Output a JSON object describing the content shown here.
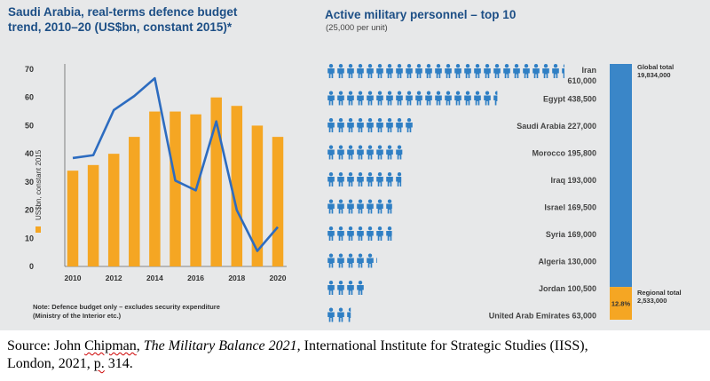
{
  "left_panel": {
    "title_line1": "Saudi Arabia, real-terms defence budget",
    "title_line2": "trend, 2010–20 (US$bn, constant 2015)*",
    "note_line1": "Note: Defence budget only – excludes security expenditure",
    "note_line2": "(Ministry of the Interior etc.)"
  },
  "right_panel": {
    "title": "Active military personnel – top 10",
    "subtitle": "(25,000 per unit)"
  },
  "chart_data": [
    {
      "type": "bar",
      "title": "Saudi Arabia, real-terms defence budget trend, 2010–20 (US$bn, constant 2015)*",
      "ylabel": "US$bn, constant 2015",
      "ylim": [
        0,
        70
      ],
      "yticks": [
        "0",
        "10",
        "20",
        "30",
        "40",
        "50",
        "60",
        "70"
      ],
      "x": [
        2010,
        2011,
        2012,
        2013,
        2014,
        2015,
        2016,
        2017,
        2018,
        2019,
        2020
      ],
      "xtick_labels": [
        "2010",
        "2012",
        "2014",
        "2016",
        "2018",
        "2020"
      ],
      "bar_values": [
        34,
        36,
        40,
        46,
        55,
        55,
        54,
        60,
        57,
        50,
        46
      ],
      "line_values": [
        38.5,
        39.5,
        55.5,
        60.5,
        66.8,
        30.5,
        27,
        51.5,
        20,
        5.5,
        14
      ],
      "bar_color": "#f5a623",
      "line_color": "#2d6cc0"
    },
    {
      "type": "bar",
      "title": "Active military personnel – top 10",
      "unit_note": "(25,000 per unit)",
      "units_per_icon": 25000,
      "rows": [
        {
          "country": "Iran",
          "value_label": "610,000",
          "value": 610000
        },
        {
          "country": "Egypt",
          "value_label": "438,500",
          "value": 438500
        },
        {
          "country": "Saudi Arabia",
          "value_label": "227,000",
          "value": 227000
        },
        {
          "country": "Morocco",
          "value_label": "195,800",
          "value": 195800
        },
        {
          "country": "Iraq",
          "value_label": "193,000",
          "value": 193000
        },
        {
          "country": "Israel",
          "value_label": "169,500",
          "value": 169500
        },
        {
          "country": "Syria",
          "value_label": "169,000",
          "value": 169000
        },
        {
          "country": "Algeria",
          "value_label": "130,000",
          "value": 130000
        },
        {
          "country": "Jordan",
          "value_label": "100,500",
          "value": 100500
        },
        {
          "country": "United Arab Emirates",
          "value_label": "63,000",
          "value": 63000
        }
      ],
      "stack": {
        "global_label": "Global total",
        "global_value": "19,834,000",
        "regional_label": "Regional total",
        "regional_value": "2,533,000",
        "regional_share_label": "12.8%",
        "regional_share": 12.8,
        "global_color": "#3a86c8",
        "regional_color": "#f5a623"
      },
      "icon_color": "#2f7fc4"
    }
  ],
  "source": {
    "prefix": "Source: John ",
    "author": "Chipman",
    "sep1": ", ",
    "book": "The Military Balance 2021",
    "rest1": ", International Institute for Strategic Studies (IISS),",
    "rest2a": "London, 2021, ",
    "pp": "p.",
    "rest2b": " 314."
  }
}
